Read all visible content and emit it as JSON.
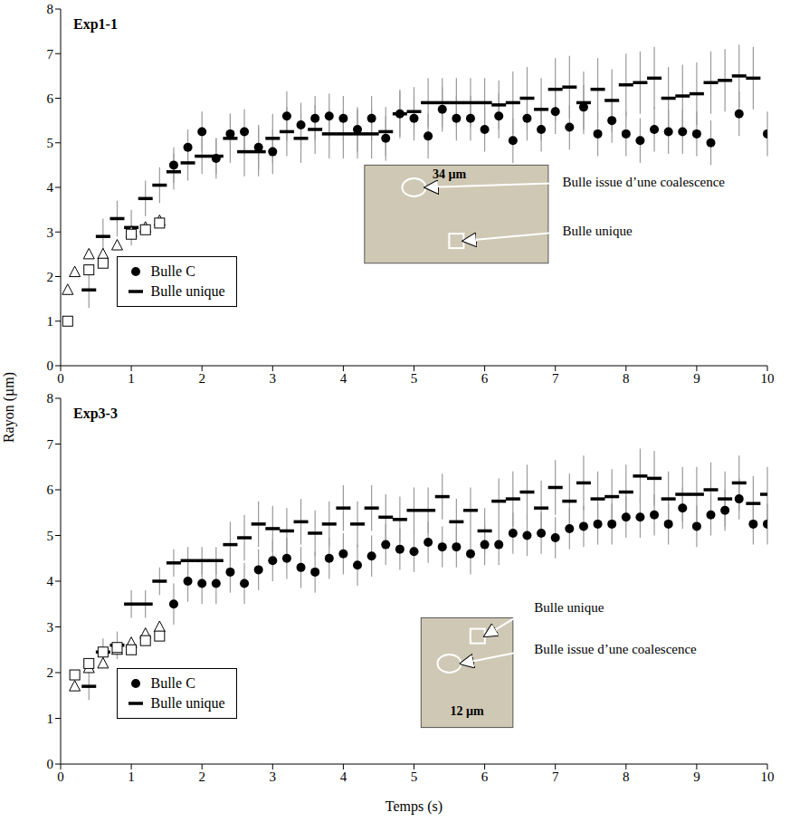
{
  "chart_data": [
    {
      "type": "scatter",
      "title": "Exp1-1",
      "ylabel": "Rayon (µm)",
      "xlim": [
        0,
        10
      ],
      "xticks": [
        0,
        1,
        2,
        3,
        4,
        5,
        6,
        7,
        8,
        9,
        10
      ],
      "ylim": [
        0,
        8
      ],
      "yticks": [
        0,
        1,
        2,
        3,
        4,
        5,
        6,
        7,
        8
      ],
      "legend": "lower left",
      "annotations": [
        {
          "text": "34 µm"
        },
        {
          "text": "Bulle issue d’une coalescence"
        },
        {
          "text": "Bulle unique"
        }
      ],
      "series": [
        {
          "name": "Bulle unique",
          "color": "#000000",
          "marker": "dash",
          "x": [
            0.4,
            0.6,
            0.8,
            1.0,
            1.2,
            1.4,
            1.6,
            1.8,
            2.0,
            2.2,
            2.4,
            2.6,
            2.8,
            3.0,
            3.2,
            3.4,
            3.6,
            3.8,
            4.0,
            4.2,
            4.4,
            4.6,
            4.8,
            5.0,
            5.2,
            5.4,
            5.6,
            5.8,
            6.0,
            6.2,
            6.4,
            6.6,
            6.8,
            7.0,
            7.2,
            7.4,
            7.6,
            7.8,
            8.0,
            8.2,
            8.4,
            8.6,
            8.8,
            9.0,
            9.2,
            9.4,
            9.6,
            9.8
          ],
          "values": [
            1.7,
            2.9,
            3.3,
            3.1,
            3.75,
            4.05,
            4.35,
            4.55,
            4.7,
            4.7,
            5.1,
            4.8,
            4.8,
            5.1,
            5.25,
            5.1,
            5.3,
            5.2,
            5.2,
            5.2,
            5.2,
            5.25,
            5.65,
            5.7,
            5.9,
            5.9,
            5.9,
            5.9,
            5.9,
            5.85,
            5.9,
            6.0,
            5.75,
            6.2,
            6.25,
            5.9,
            6.2,
            5.95,
            6.3,
            6.35,
            6.45,
            6.0,
            6.05,
            6.1,
            6.35,
            6.4,
            6.5,
            6.45
          ],
          "errors": [
            0.4,
            0.4,
            0.4,
            0.4,
            0.4,
            0.4,
            0.4,
            0.4,
            0.4,
            0.4,
            0.55,
            0.55,
            0.55,
            0.55,
            0.55,
            0.55,
            0.55,
            0.55,
            0.55,
            0.55,
            0.55,
            0.55,
            0.55,
            0.55,
            0.55,
            0.55,
            0.55,
            0.55,
            0.55,
            0.55,
            0.7,
            0.7,
            0.7,
            0.7,
            0.7,
            0.7,
            0.7,
            0.7,
            0.7,
            0.7,
            0.7,
            0.7,
            0.7,
            0.7,
            0.7,
            0.7,
            0.7,
            0.7
          ]
        },
        {
          "name": "Bulle C",
          "color": "#000000",
          "marker": "circle",
          "x": [
            1.6,
            1.8,
            2.0,
            2.2,
            2.4,
            2.6,
            2.8,
            3.0,
            3.2,
            3.4,
            3.6,
            3.8,
            4.0,
            4.2,
            4.4,
            4.6,
            4.8,
            5.0,
            5.2,
            5.4,
            5.6,
            5.8,
            6.0,
            6.2,
            6.4,
            6.6,
            6.8,
            7.0,
            7.2,
            7.4,
            7.6,
            7.8,
            8.0,
            8.2,
            8.4,
            8.6,
            8.8,
            9.0,
            9.2,
            9.6,
            10.0
          ],
          "values": [
            4.5,
            4.9,
            5.25,
            4.65,
            5.2,
            5.25,
            4.9,
            4.8,
            5.6,
            5.4,
            5.55,
            5.6,
            5.55,
            5.3,
            5.55,
            5.1,
            5.65,
            5.55,
            5.15,
            5.75,
            5.55,
            5.55,
            5.3,
            5.6,
            5.05,
            5.55,
            5.3,
            5.7,
            5.35,
            5.8,
            5.2,
            5.5,
            5.2,
            5.05,
            5.3,
            5.25,
            5.25,
            5.2,
            5.0,
            5.65,
            5.2
          ],
          "errors": [
            0.4,
            0.4,
            0.45,
            0.45,
            0.45,
            0.5,
            0.5,
            0.5,
            0.55,
            0.5,
            0.5,
            0.5,
            0.5,
            0.5,
            0.5,
            0.5,
            0.5,
            0.5,
            0.5,
            0.5,
            0.5,
            0.5,
            0.5,
            0.5,
            0.5,
            0.5,
            0.5,
            0.5,
            0.5,
            0.5,
            0.5,
            0.5,
            0.5,
            0.5,
            0.5,
            0.5,
            0.5,
            0.5,
            0.5,
            0.5,
            0.5
          ]
        },
        {
          "color": "#000000",
          "marker": "triangle",
          "x": [
            0.1,
            0.2,
            0.4,
            0.6,
            0.8,
            1.0,
            1.2,
            1.4
          ],
          "values": [
            1.7,
            2.1,
            2.5,
            2.5,
            2.7,
            3.0,
            3.1,
            3.25
          ]
        },
        {
          "color": "#000000",
          "marker": "square",
          "x": [
            0.1,
            0.4,
            0.6,
            1.0,
            1.2,
            1.4
          ],
          "values": [
            1.0,
            2.15,
            2.3,
            2.95,
            3.05,
            3.2
          ]
        }
      ]
    },
    {
      "type": "scatter",
      "title": "Exp3-3",
      "xlabel": "Temps (s)",
      "xlim": [
        0,
        10
      ],
      "xticks": [
        0,
        1,
        2,
        3,
        4,
        5,
        6,
        7,
        8,
        9,
        10
      ],
      "ylim": [
        0,
        8
      ],
      "yticks": [
        0,
        1,
        2,
        3,
        4,
        5,
        6,
        7,
        8
      ],
      "legend": "lower left",
      "annotations": [
        {
          "text": "Bulle unique"
        },
        {
          "text": "Bulle issue d’une coalescence"
        },
        {
          "text": "12 µm"
        }
      ],
      "series": [
        {
          "name": "Bulle unique",
          "color": "#000000",
          "marker": "dash",
          "x": [
            0.4,
            0.6,
            0.8,
            1.0,
            1.2,
            1.4,
            1.6,
            1.8,
            2.0,
            2.2,
            2.4,
            2.6,
            2.8,
            3.0,
            3.2,
            3.4,
            3.6,
            3.8,
            4.0,
            4.2,
            4.4,
            4.6,
            4.8,
            5.0,
            5.2,
            5.4,
            5.6,
            5.8,
            6.0,
            6.2,
            6.4,
            6.6,
            6.8,
            7.0,
            7.2,
            7.4,
            7.6,
            7.8,
            8.0,
            8.2,
            8.4,
            8.6,
            8.8,
            9.0,
            9.2,
            9.4,
            9.6,
            9.8,
            10.0
          ],
          "values": [
            1.7,
            2.45,
            2.6,
            3.5,
            3.5,
            4.0,
            4.4,
            4.45,
            4.45,
            4.45,
            4.8,
            4.95,
            5.25,
            5.15,
            5.1,
            5.3,
            5.05,
            5.25,
            5.6,
            5.25,
            5.6,
            5.4,
            5.35,
            5.55,
            5.55,
            5.85,
            5.3,
            5.55,
            5.1,
            5.75,
            5.8,
            5.95,
            5.6,
            6.05,
            5.75,
            6.15,
            5.8,
            5.85,
            5.95,
            6.3,
            6.25,
            5.8,
            5.9,
            5.9,
            6.0,
            5.8,
            6.15,
            5.7,
            5.9
          ],
          "errors": [
            0.3,
            0.3,
            0.3,
            0.3,
            0.3,
            0.3,
            0.3,
            0.3,
            0.3,
            0.3,
            0.5,
            0.5,
            0.5,
            0.5,
            0.5,
            0.5,
            0.5,
            0.5,
            0.5,
            0.5,
            0.5,
            0.5,
            0.5,
            0.5,
            0.5,
            0.5,
            0.5,
            0.5,
            0.5,
            0.5,
            0.6,
            0.6,
            0.6,
            0.6,
            0.6,
            0.6,
            0.6,
            0.6,
            0.6,
            0.6,
            0.6,
            0.6,
            0.6,
            0.6,
            0.6,
            0.6,
            0.6,
            0.6,
            0.6
          ]
        },
        {
          "name": "Bulle C",
          "color": "#000000",
          "marker": "circle",
          "x": [
            1.6,
            1.8,
            2.0,
            2.2,
            2.4,
            2.6,
            2.8,
            3.0,
            3.2,
            3.4,
            3.6,
            3.8,
            4.0,
            4.2,
            4.4,
            4.6,
            4.8,
            5.0,
            5.2,
            5.4,
            5.6,
            5.8,
            6.0,
            6.2,
            6.4,
            6.6,
            6.8,
            7.0,
            7.2,
            7.4,
            7.6,
            7.8,
            8.0,
            8.2,
            8.4,
            8.6,
            8.8,
            9.0,
            9.2,
            9.4,
            9.6,
            9.8,
            10.0
          ],
          "values": [
            3.5,
            4.0,
            3.95,
            3.95,
            4.2,
            3.95,
            4.25,
            4.45,
            4.5,
            4.3,
            4.2,
            4.5,
            4.6,
            4.35,
            4.55,
            4.8,
            4.7,
            4.65,
            4.85,
            4.75,
            4.75,
            4.6,
            4.8,
            4.8,
            5.05,
            5.0,
            5.05,
            4.95,
            5.15,
            5.2,
            5.25,
            5.25,
            5.4,
            5.4,
            5.45,
            5.25,
            5.6,
            5.2,
            5.45,
            5.55,
            5.8,
            5.25,
            5.25
          ],
          "errors": [
            0.45,
            0.45,
            0.45,
            0.45,
            0.45,
            0.45,
            0.45,
            0.45,
            0.45,
            0.45,
            0.45,
            0.45,
            0.45,
            0.45,
            0.45,
            0.45,
            0.45,
            0.45,
            0.45,
            0.45,
            0.45,
            0.45,
            0.45,
            0.45,
            0.45,
            0.45,
            0.45,
            0.45,
            0.45,
            0.45,
            0.45,
            0.45,
            0.45,
            0.45,
            0.45,
            0.45,
            0.45,
            0.45,
            0.45,
            0.45,
            0.45,
            0.45,
            0.45
          ]
        },
        {
          "color": "#000000",
          "marker": "triangle",
          "x": [
            0.2,
            0.4,
            0.6,
            0.8,
            1.0,
            1.2,
            1.4
          ],
          "values": [
            1.7,
            2.1,
            2.2,
            2.5,
            2.65,
            2.85,
            3.0
          ]
        },
        {
          "color": "#000000",
          "marker": "square",
          "x": [
            0.2,
            0.4,
            0.6,
            0.8,
            1.0,
            1.2,
            1.4
          ],
          "values": [
            1.95,
            2.2,
            2.45,
            2.55,
            2.5,
            2.7,
            2.8
          ]
        }
      ]
    }
  ]
}
